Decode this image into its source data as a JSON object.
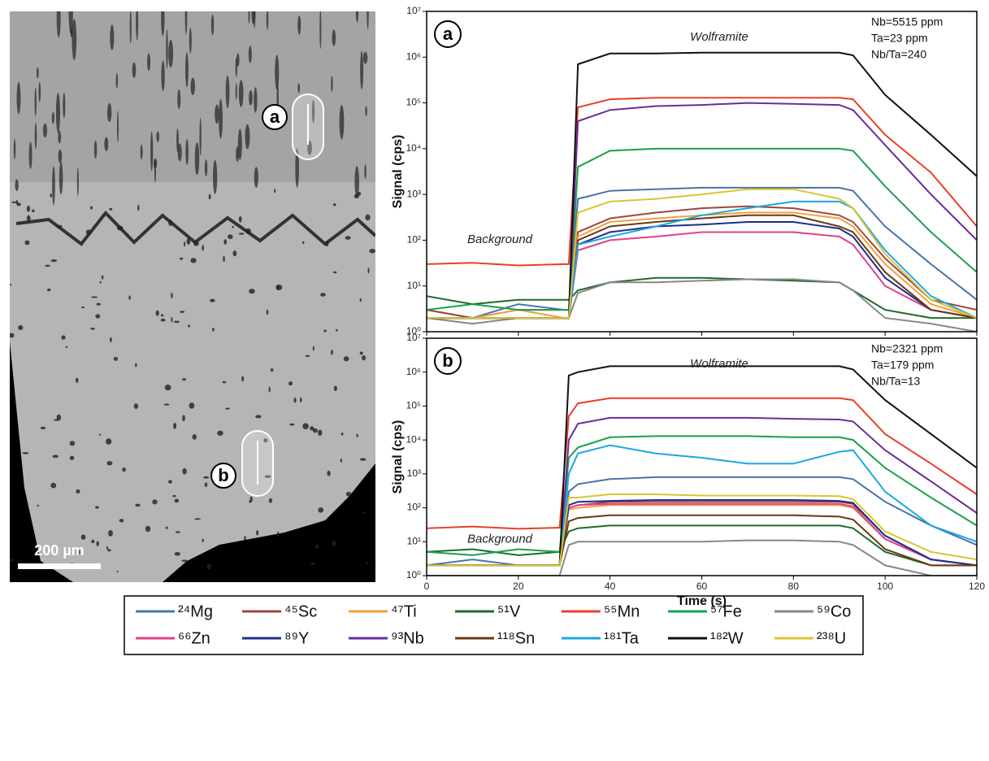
{
  "image": {
    "labels": [
      "a",
      "b"
    ],
    "scale_bar": "200 µm"
  },
  "chart_data": [
    {
      "type": "line",
      "panel": "a",
      "ylabel": "Signal (cps)",
      "mineral": "Wolframite",
      "background": "Background",
      "info": [
        "Nb=5515 ppm",
        "Ta=23 ppm",
        "Nb/Ta=240"
      ],
      "log_y": true,
      "xlim": [
        0,
        120
      ],
      "xticks": [
        0,
        20,
        40,
        60,
        80,
        100,
        120
      ],
      "ylim": [
        1,
        10000000
      ],
      "yticks": [
        {
          "value": 1,
          "label": "10⁰"
        },
        {
          "value": 10,
          "label": "10¹"
        },
        {
          "value": 100,
          "label": "10²"
        },
        {
          "value": 1000,
          "label": "10³"
        },
        {
          "value": 10000,
          "label": "10⁴"
        },
        {
          "value": 100000,
          "label": "10⁵"
        },
        {
          "value": 1000000,
          "label": "10⁶"
        },
        {
          "value": 10000000,
          "label": "10⁷"
        }
      ],
      "x": [
        0,
        10,
        20,
        30,
        31,
        33,
        40,
        50,
        60,
        70,
        80,
        90,
        93,
        100,
        110,
        120
      ],
      "series": [
        {
          "name": "²⁴Mg",
          "color": "#4a73a8",
          "values": [
            3,
            2,
            4,
            3,
            3,
            800,
            1200,
            1300,
            1400,
            1400,
            1400,
            1400,
            1200,
            200,
            30,
            5
          ]
        },
        {
          "name": "⁴⁵Sc",
          "color": "#a0453c",
          "values": [
            3,
            2,
            3,
            3,
            3,
            150,
            300,
            400,
            500,
            550,
            500,
            350,
            250,
            40,
            5,
            3
          ]
        },
        {
          "name": "⁴⁷Ti",
          "color": "#f0a040",
          "values": [
            2,
            2,
            3,
            2,
            2,
            120,
            250,
            300,
            350,
            400,
            400,
            300,
            200,
            30,
            4,
            2
          ]
        },
        {
          "name": "⁵¹V",
          "color": "#1f6b2e",
          "values": [
            6,
            4,
            5,
            5,
            5,
            8,
            12,
            15,
            15,
            14,
            13,
            12,
            8,
            3,
            2,
            2
          ]
        },
        {
          "name": "⁵⁵Mn",
          "color": "#e8402a",
          "values": [
            30,
            32,
            28,
            30,
            30,
            80000,
            120000,
            130000,
            130000,
            130000,
            130000,
            130000,
            120000,
            20000,
            3000,
            200
          ]
        },
        {
          "name": "⁵⁷Fe",
          "color": "#1aa04a",
          "values": [
            3,
            4,
            3,
            3,
            3,
            4000,
            9000,
            10000,
            10000,
            10000,
            10000,
            10000,
            9000,
            1500,
            150,
            20
          ]
        },
        {
          "name": "⁵⁹Co",
          "color": "#888888",
          "values": [
            2,
            1.5,
            2,
            2,
            2,
            7,
            12,
            12,
            13,
            14,
            14,
            12,
            8,
            2,
            1.5,
            1
          ]
        },
        {
          "name": "⁶⁶Zn",
          "color": "#e0408a",
          "values": [
            2,
            2,
            2,
            2,
            2,
            60,
            100,
            120,
            150,
            150,
            150,
            120,
            80,
            10,
            3,
            2
          ]
        },
        {
          "name": "⁸⁹Y",
          "color": "#1c2f8a",
          "values": [
            2,
            2,
            2,
            2,
            2,
            80,
            150,
            200,
            220,
            250,
            250,
            180,
            120,
            15,
            3,
            2
          ]
        },
        {
          "name": "⁹³Nb",
          "color": "#6a2c9c",
          "values": [
            2,
            2,
            2,
            2,
            2,
            40000,
            70000,
            85000,
            90000,
            100000,
            95000,
            90000,
            70000,
            12000,
            1000,
            100
          ]
        },
        {
          "name": "¹¹⁸Sn",
          "color": "#6b3a12",
          "values": [
            2,
            2,
            2,
            2,
            2,
            100,
            200,
            250,
            300,
            350,
            350,
            200,
            150,
            20,
            3,
            2
          ]
        },
        {
          "name": "¹⁸¹Ta",
          "color": "#1aa8e0",
          "values": [
            2,
            2,
            2,
            2,
            2,
            80,
            120,
            200,
            350,
            500,
            700,
            700,
            500,
            60,
            6,
            2
          ]
        },
        {
          "name": "¹⁸²W",
          "color": "#111111",
          "values": [
            2,
            2,
            2,
            2,
            2,
            700000,
            1200000,
            1200000,
            1250000,
            1250000,
            1250000,
            1250000,
            1100000,
            150000,
            20000,
            2500
          ]
        },
        {
          "name": "²³⁸U",
          "color": "#dcc430",
          "values": [
            2,
            2,
            2,
            2,
            2,
            400,
            700,
            800,
            1000,
            1300,
            1300,
            800,
            500,
            50,
            5,
            2
          ]
        }
      ]
    },
    {
      "type": "line",
      "panel": "b",
      "ylabel": "Signal (cps)",
      "xlabel": "Time (s)",
      "mineral": "Wolframite",
      "background": "Background",
      "info": [
        "Nb=2321 ppm",
        "Ta=179 ppm",
        "Nb/Ta=13"
      ],
      "log_y": true,
      "xlim": [
        0,
        120
      ],
      "xticks": [
        0,
        20,
        40,
        60,
        80,
        100,
        120
      ],
      "ylim": [
        1,
        10000000
      ],
      "yticks": [
        {
          "value": 1,
          "label": "10⁰"
        },
        {
          "value": 10,
          "label": "10¹"
        },
        {
          "value": 100,
          "label": "10²"
        },
        {
          "value": 1000,
          "label": "10³"
        },
        {
          "value": 10000,
          "label": "10⁴"
        },
        {
          "value": 100000,
          "label": "10⁵"
        },
        {
          "value": 1000000,
          "label": "10⁶"
        },
        {
          "value": 10000000,
          "label": "10⁷"
        }
      ],
      "x": [
        0,
        10,
        20,
        29,
        31,
        33,
        40,
        50,
        60,
        70,
        80,
        90,
        93,
        100,
        110,
        120
      ],
      "series": [
        {
          "values": [
            2,
            3,
            2,
            2,
            300,
            500,
            700,
            800,
            800,
            800,
            800,
            800,
            700,
            150,
            30,
            8
          ]
        },
        {
          "values": [
            2,
            2,
            2,
            2,
            100,
            120,
            150,
            150,
            150,
            150,
            150,
            150,
            130,
            15,
            3,
            2
          ]
        },
        {
          "values": [
            2,
            2,
            2,
            2,
            90,
            100,
            120,
            120,
            120,
            120,
            120,
            120,
            100,
            12,
            3,
            2
          ]
        },
        {
          "values": [
            5,
            6,
            4,
            5,
            20,
            25,
            30,
            30,
            30,
            30,
            30,
            30,
            25,
            5,
            2,
            2
          ]
        },
        {
          "values": [
            25,
            28,
            24,
            26,
            50000,
            120000,
            170000,
            170000,
            170000,
            170000,
            170000,
            170000,
            150000,
            15000,
            2000,
            250
          ]
        },
        {
          "values": [
            5,
            4,
            6,
            5,
            3000,
            6000,
            12000,
            13000,
            13000,
            13000,
            12000,
            12000,
            10000,
            1500,
            200,
            30
          ]
        },
        {
          "values": [
            1,
            1,
            1,
            1,
            8,
            10,
            10,
            10,
            10,
            11,
            11,
            10,
            8,
            2,
            1,
            1
          ]
        },
        {
          "values": [
            2,
            2,
            2,
            2,
            100,
            120,
            130,
            130,
            130,
            130,
            130,
            130,
            110,
            12,
            3,
            2
          ]
        },
        {
          "values": [
            2,
            2,
            2,
            2,
            120,
            150,
            160,
            170,
            170,
            170,
            170,
            160,
            140,
            15,
            3,
            2
          ]
        },
        {
          "values": [
            2,
            2,
            2,
            2,
            10000,
            30000,
            45000,
            45000,
            45000,
            45000,
            42000,
            40000,
            35000,
            5000,
            600,
            70
          ]
        },
        {
          "values": [
            2,
            2,
            2,
            2,
            40,
            50,
            60,
            60,
            60,
            60,
            60,
            55,
            45,
            6,
            2,
            2
          ]
        },
        {
          "values": [
            2,
            2,
            2,
            2,
            1000,
            4000,
            7000,
            4000,
            3000,
            2000,
            2000,
            4500,
            5000,
            300,
            30,
            10
          ]
        },
        {
          "values": [
            2,
            2,
            2,
            2,
            800000,
            1000000,
            1500000,
            1500000,
            1500000,
            1500000,
            1500000,
            1500000,
            1200000,
            150000,
            15000,
            1500
          ]
        },
        {
          "values": [
            2,
            2,
            2,
            2,
            200,
            200,
            250,
            250,
            230,
            230,
            230,
            220,
            180,
            20,
            5,
            3
          ]
        }
      ]
    }
  ]
}
